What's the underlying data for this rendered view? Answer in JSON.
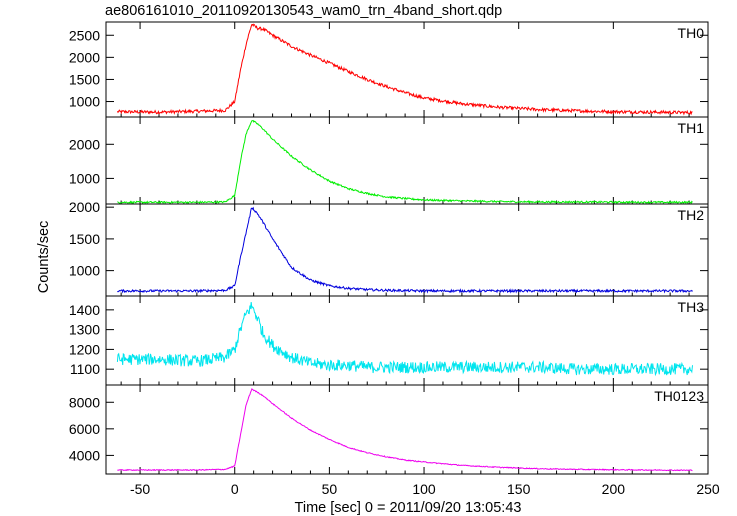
{
  "title": "ae806161010_20110920130543_wam0_trn_4band_short.qdp",
  "chart_data": {
    "type": "line",
    "title": "ae806161010_20110920130543_wam0_trn_4band_short.qdp",
    "xlabel": "Time [sec] 0 = 2011/09/20 13:05:43",
    "ylabel": "Counts/sec",
    "xlim": [
      -68,
      250
    ],
    "x_ticks": [
      -50,
      0,
      50,
      100,
      150,
      200,
      250
    ],
    "grid": false,
    "panels": [
      {
        "name": "TH0",
        "color": "#ff0000",
        "ylim": [
          650,
          2800
        ],
        "y_ticks": [
          1000,
          1500,
          2000,
          2500
        ],
        "x": [
          -62,
          -40,
          -20,
          -5,
          0,
          3,
          6,
          9,
          12,
          15,
          20,
          30,
          40,
          50,
          60,
          70,
          80,
          90,
          100,
          120,
          140,
          160,
          180,
          200,
          220,
          242
        ],
        "y": [
          770,
          760,
          780,
          800,
          1000,
          1700,
          2300,
          2750,
          2660,
          2640,
          2500,
          2250,
          2050,
          1870,
          1680,
          1500,
          1340,
          1200,
          1080,
          950,
          870,
          820,
          790,
          770,
          760,
          750
        ],
        "noise": 35
      },
      {
        "name": "TH1",
        "color": "#00ee00",
        "ylim": [
          250,
          2800
        ],
        "y_ticks": [
          1000,
          2000
        ],
        "x": [
          -62,
          -40,
          -20,
          -5,
          0,
          3,
          6,
          9,
          12,
          15,
          20,
          30,
          40,
          50,
          60,
          70,
          80,
          90,
          100,
          120,
          140,
          160,
          180,
          200,
          220,
          242
        ],
        "y": [
          300,
          300,
          300,
          310,
          500,
          1500,
          2300,
          2700,
          2600,
          2450,
          2150,
          1650,
          1250,
          920,
          700,
          560,
          460,
          410,
          370,
          340,
          320,
          310,
          310,
          305,
          300,
          300
        ],
        "noise": 25
      },
      {
        "name": "TH2",
        "color": "#0000dd",
        "ylim": [
          600,
          2050
        ],
        "y_ticks": [
          1000,
          1500,
          2000
        ],
        "x": [
          -62,
          -40,
          -20,
          -5,
          0,
          3,
          6,
          9,
          12,
          15,
          20,
          30,
          40,
          50,
          60,
          70,
          80,
          90,
          100,
          120,
          140,
          160,
          180,
          200,
          220,
          242
        ],
        "y": [
          680,
          680,
          680,
          690,
          760,
          1200,
          1600,
          2000,
          1900,
          1760,
          1500,
          1050,
          850,
          760,
          720,
          700,
          690,
          685,
          680,
          680,
          680,
          680,
          680,
          680,
          680,
          680
        ],
        "noise": 18
      },
      {
        "name": "TH3",
        "color": "#00e5ee",
        "ylim": [
          1020,
          1470
        ],
        "y_ticks": [
          1100,
          1200,
          1300,
          1400
        ],
        "x": [
          -62,
          -40,
          -20,
          -5,
          0,
          3,
          6,
          9,
          12,
          15,
          20,
          30,
          40,
          50,
          60,
          70,
          80,
          90,
          100,
          120,
          140,
          160,
          180,
          200,
          220,
          242
        ],
        "y": [
          1150,
          1150,
          1140,
          1160,
          1200,
          1300,
          1380,
          1420,
          1360,
          1280,
          1220,
          1160,
          1130,
          1120,
          1120,
          1110,
          1110,
          1110,
          1110,
          1110,
          1110,
          1110,
          1100,
          1100,
          1100,
          1100
        ],
        "noise": 30
      },
      {
        "name": "TH0123",
        "color": "#ee00ee",
        "ylim": [
          2600,
          9300
        ],
        "y_ticks": [
          4000,
          6000,
          8000
        ],
        "x": [
          -62,
          -40,
          -20,
          -5,
          0,
          3,
          6,
          9,
          12,
          15,
          20,
          30,
          40,
          50,
          60,
          70,
          80,
          90,
          100,
          120,
          140,
          160,
          180,
          200,
          220,
          242
        ],
        "y": [
          2900,
          2900,
          2900,
          2950,
          3200,
          5500,
          7800,
          9000,
          8750,
          8500,
          7900,
          6800,
          5900,
          5200,
          4600,
          4200,
          3900,
          3650,
          3500,
          3250,
          3100,
          3000,
          2950,
          2920,
          2900,
          2880
        ],
        "noise": 35
      }
    ]
  }
}
